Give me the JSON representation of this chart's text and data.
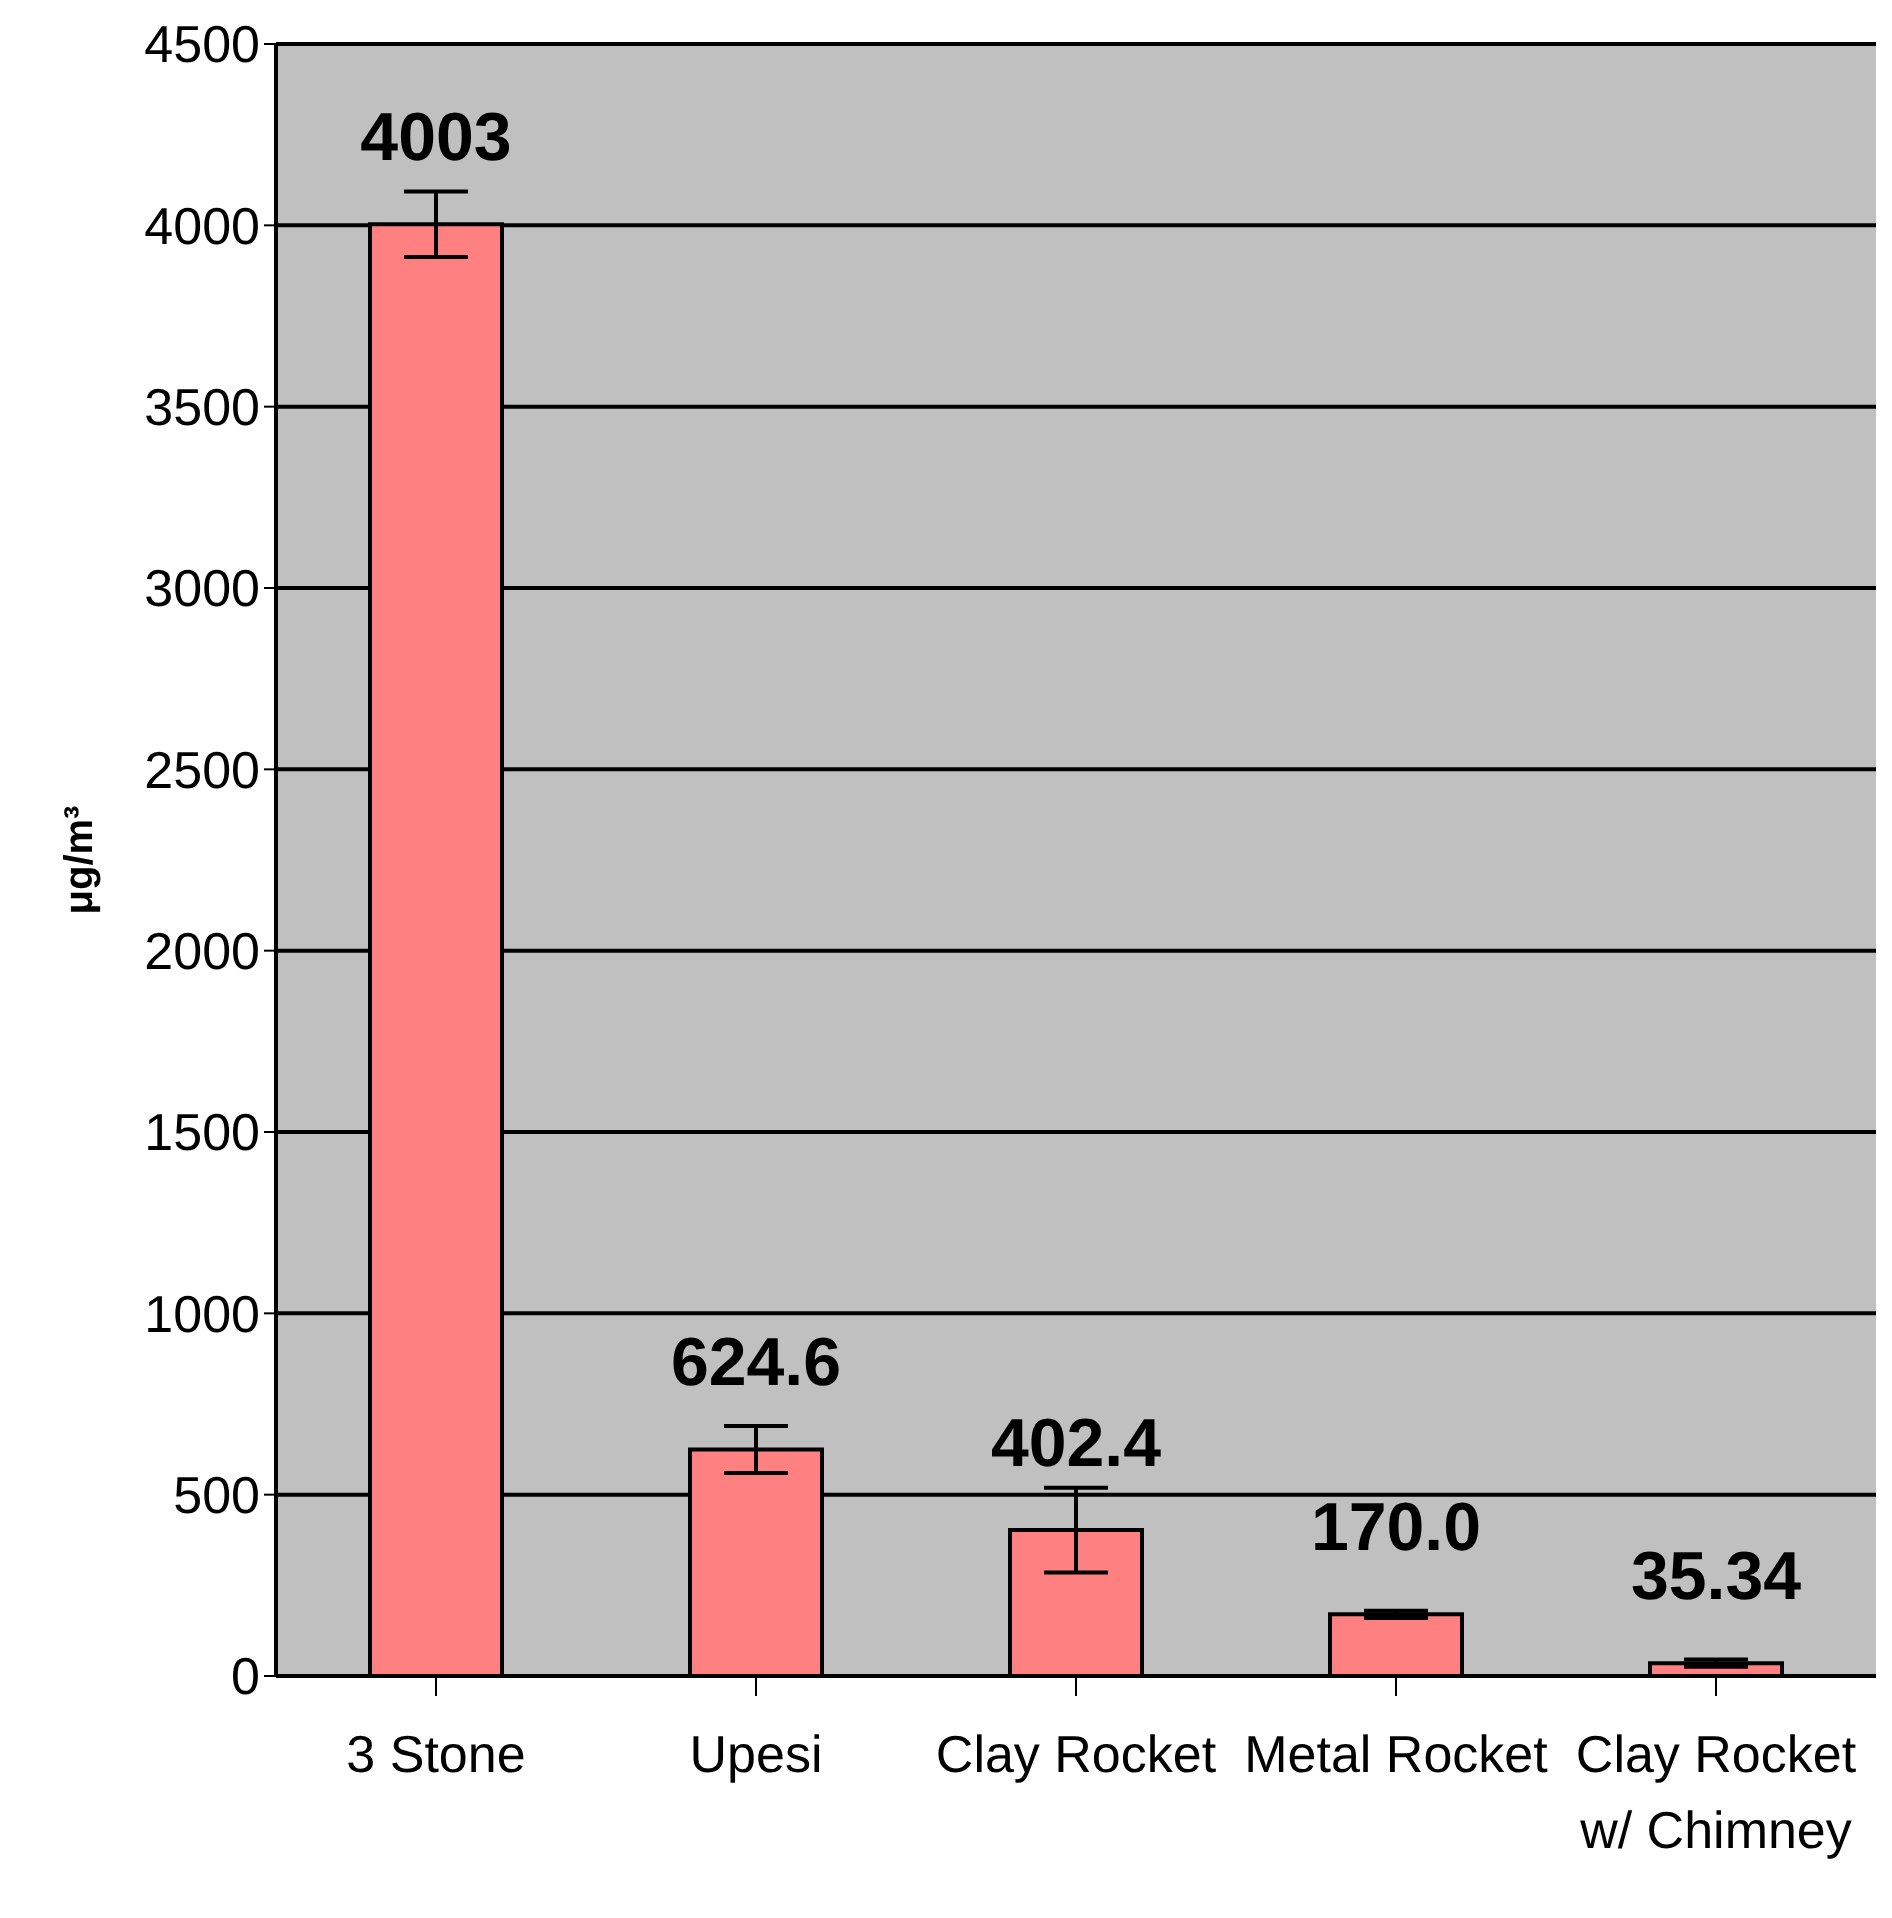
{
  "chart_data": {
    "type": "bar",
    "ylabel": "μg/m³",
    "categories": [
      "3 Stone",
      "Upesi",
      "Clay Rocket",
      "Metal Rocket",
      "Clay Rocket\nw/ Chimney"
    ],
    "values": [
      4003,
      624.6,
      402.4,
      170.0,
      35.34
    ],
    "value_labels": [
      "4003",
      "624.6",
      "402.4",
      "170.0",
      "35.34"
    ],
    "errors": [
      90,
      65,
      117,
      10,
      10
    ],
    "color": "#ff8080",
    "ylim": [
      0,
      4500
    ],
    "yticks": [
      0,
      500,
      1000,
      1500,
      2000,
      2500,
      3000,
      3500,
      4000,
      4500
    ],
    "grid": "y",
    "legend": false
  }
}
